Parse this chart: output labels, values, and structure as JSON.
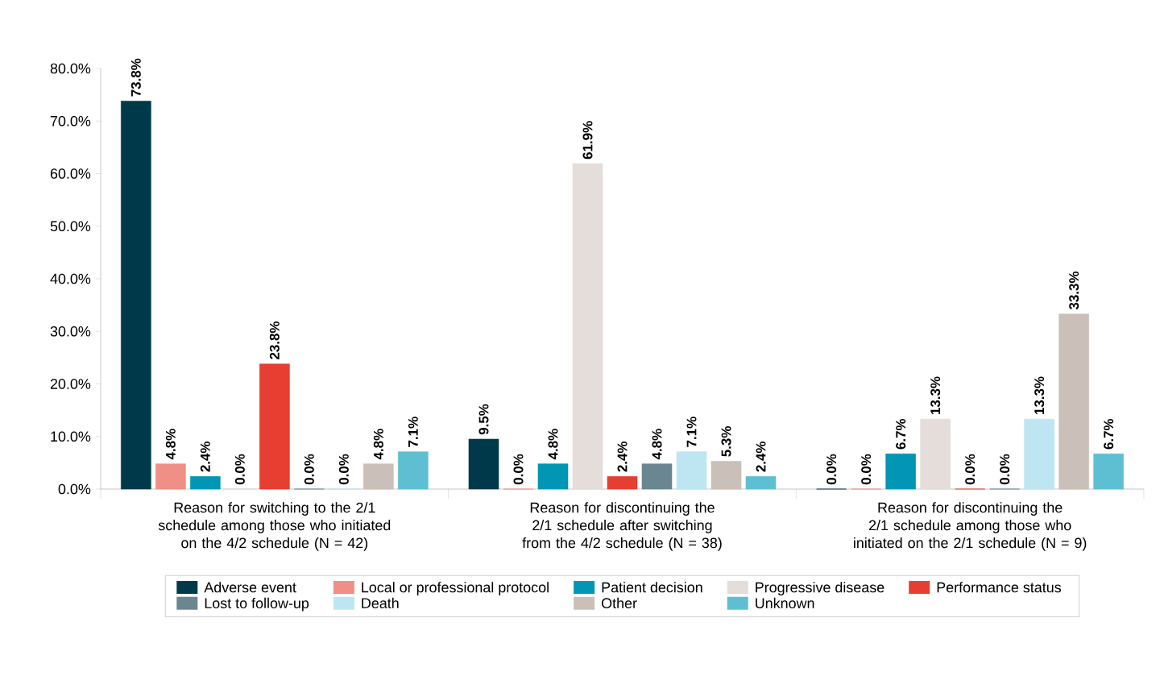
{
  "chart_data": {
    "type": "bar",
    "categories": [
      "Reason for switching to the 2/1 schedule among those who initiated on the 4/2 schedule (N = 42)",
      "Reason for discontinuing the 2/1 schedule after switching from the 4/2 schedule (N = 38)",
      "Reason for discontinuing the 2/1 schedule among those who initiated on the 2/1 schedule (N = 9)"
    ],
    "series": [
      {
        "name": "Adverse event",
        "color": "#003a4a",
        "values": [
          73.8,
          9.5,
          0.0
        ],
        "value_labels": [
          "73.8%",
          "9.5%",
          "0.0%"
        ]
      },
      {
        "name": "Local or professional protocol",
        "color": "#f08f85",
        "values": [
          4.8,
          0.0,
          0.0
        ],
        "value_labels": [
          "4.8%",
          "0.0%",
          "0.0%"
        ]
      },
      {
        "name": "Patient decision",
        "color": "#0096b4",
        "values": [
          2.4,
          4.8,
          6.7
        ],
        "value_labels": [
          "2.4%",
          "4.8%",
          "6.7%"
        ]
      },
      {
        "name": "Progressive disease",
        "color": "#e4ddd9",
        "values": [
          0.0,
          61.9,
          13.3
        ],
        "value_labels": [
          "0.0%",
          "61.9%",
          "13.3%"
        ]
      },
      {
        "name": "Performance status",
        "color": "#e63e30",
        "values": [
          23.8,
          2.4,
          0.0
        ],
        "value_labels": [
          "23.8%",
          "2.4%",
          "0.0%"
        ]
      },
      {
        "name": "Lost to follow-up",
        "color": "#6a8690",
        "values": [
          0.0,
          4.8,
          0.0
        ],
        "value_labels": [
          "0.0%",
          "4.8%",
          "0.0%"
        ]
      },
      {
        "name": "Death",
        "color": "#bde6f2",
        "values": [
          0.0,
          7.1,
          13.3
        ],
        "value_labels": [
          "0.0%",
          "7.1%",
          "13.3%"
        ]
      },
      {
        "name": "Other",
        "color": "#cbbfb9",
        "values": [
          4.8,
          5.3,
          33.3
        ],
        "value_labels": [
          "4.8%",
          "5.3%",
          "33.3%"
        ]
      },
      {
        "name": "Unknown",
        "color": "#5fbfd2",
        "values": [
          7.1,
          2.4,
          6.7
        ],
        "value_labels": [
          "7.1%",
          "2.4%",
          "6.7%"
        ]
      }
    ],
    "ylim": [
      0,
      80
    ],
    "yticks": [
      {
        "value": 0,
        "label": "0.0%"
      },
      {
        "value": 10,
        "label": "10.0%"
      },
      {
        "value": 20,
        "label": "20.0%"
      },
      {
        "value": 30,
        "label": "30.0%"
      },
      {
        "value": 40,
        "label": "40.0%"
      },
      {
        "value": 50,
        "label": "50.0%"
      },
      {
        "value": 60,
        "label": "60.0%"
      },
      {
        "value": 70,
        "label": "70.0%"
      },
      {
        "value": 80,
        "label": "80.0%"
      }
    ],
    "legend": "bottom"
  }
}
